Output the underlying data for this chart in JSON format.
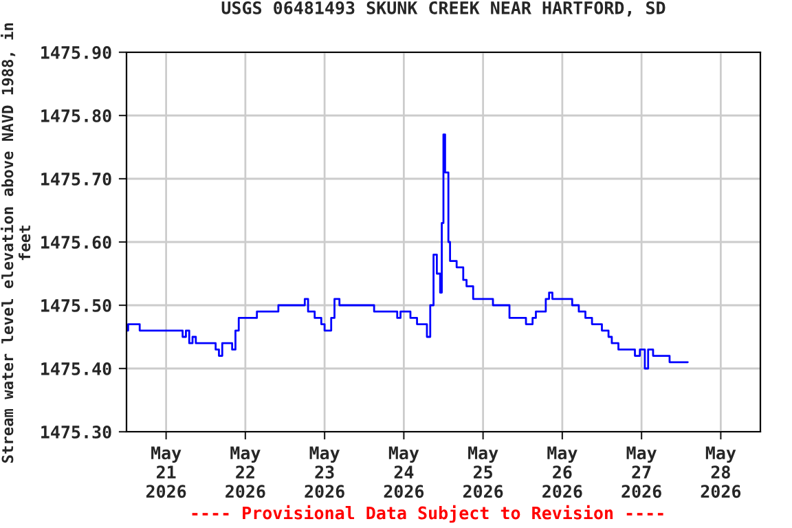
{
  "chart_data": {
    "type": "step",
    "title": "USGS 06481493 SKUNK CREEK NEAR HARTFORD, SD",
    "ylabel": "Stream water level elevation above NAVD 1988, in feet",
    "x": [
      "2026-05-20T12:00",
      "2026-05-20T12:30",
      "2026-05-20T16:00",
      "2026-05-21T05:00",
      "2026-05-21T06:00",
      "2026-05-21T07:00",
      "2026-05-21T08:00",
      "2026-05-21T09:00",
      "2026-05-21T15:00",
      "2026-05-21T16:00",
      "2026-05-21T17:00",
      "2026-05-21T20:00",
      "2026-05-21T21:00",
      "2026-05-21T22:00",
      "2026-05-22T03:30",
      "2026-05-22T10:00",
      "2026-05-22T18:00",
      "2026-05-22T19:00",
      "2026-05-22T21:00",
      "2026-05-22T23:00",
      "2026-05-23T00:00",
      "2026-05-23T02:00",
      "2026-05-23T03:00",
      "2026-05-23T04:30",
      "2026-05-23T15:00",
      "2026-05-23T22:00",
      "2026-05-23T23:00",
      "2026-05-24T02:00",
      "2026-05-24T04:00",
      "2026-05-24T07:00",
      "2026-05-24T08:00",
      "2026-05-24T09:00",
      "2026-05-24T10:00",
      "2026-05-24T11:00",
      "2026-05-24T11:30",
      "2026-05-24T12:00",
      "2026-05-24T12:30",
      "2026-05-24T13:30",
      "2026-05-24T14:00",
      "2026-05-24T16:00",
      "2026-05-24T18:00",
      "2026-05-24T19:00",
      "2026-05-24T21:00",
      "2026-05-25T03:00",
      "2026-05-25T08:00",
      "2026-05-25T13:00",
      "2026-05-25T15:00",
      "2026-05-25T16:00",
      "2026-05-25T19:00",
      "2026-05-25T20:00",
      "2026-05-25T21:00",
      "2026-05-26T03:00",
      "2026-05-26T05:00",
      "2026-05-26T07:00",
      "2026-05-26T09:00",
      "2026-05-26T12:00",
      "2026-05-26T14:00",
      "2026-05-26T15:00",
      "2026-05-26T17:00",
      "2026-05-26T22:00",
      "2026-05-26T23:30",
      "2026-05-27T01:00",
      "2026-05-27T02:00",
      "2026-05-27T03:30",
      "2026-05-27T08:30",
      "2026-05-27T14:00"
    ],
    "series": [
      {
        "color": "#0000ff",
        "values": [
          1475.46,
          1475.47,
          1475.46,
          1475.45,
          1475.46,
          1475.44,
          1475.45,
          1475.44,
          1475.43,
          1475.42,
          1475.44,
          1475.43,
          1475.46,
          1475.48,
          1475.49,
          1475.5,
          1475.51,
          1475.49,
          1475.48,
          1475.47,
          1475.46,
          1475.48,
          1475.51,
          1475.5,
          1475.49,
          1475.48,
          1475.49,
          1475.48,
          1475.47,
          1475.45,
          1475.5,
          1475.58,
          1475.55,
          1475.52,
          1475.63,
          1475.77,
          1475.71,
          1475.6,
          1475.57,
          1475.56,
          1475.54,
          1475.53,
          1475.51,
          1475.5,
          1475.48,
          1475.47,
          1475.48,
          1475.49,
          1475.51,
          1475.52,
          1475.51,
          1475.5,
          1475.49,
          1475.48,
          1475.47,
          1475.46,
          1475.45,
          1475.44,
          1475.43,
          1475.42,
          1475.43,
          1475.4,
          1475.43,
          1475.42,
          1475.41,
          1475.41
        ]
      }
    ],
    "xlim": [
      "2026-05-20T12:00",
      "2026-05-28T12:00"
    ],
    "xticks": [
      {
        "value": "2026-05-21",
        "label": "May\n21\n2026"
      },
      {
        "value": "2026-05-22",
        "label": "May\n22\n2026"
      },
      {
        "value": "2026-05-23",
        "label": "May\n23\n2026"
      },
      {
        "value": "2026-05-24",
        "label": "May\n24\n2026"
      },
      {
        "value": "2026-05-25",
        "label": "May\n25\n2026"
      },
      {
        "value": "2026-05-26",
        "label": "May\n26\n2026"
      },
      {
        "value": "2026-05-27",
        "label": "May\n27\n2026"
      },
      {
        "value": "2026-05-28",
        "label": "May\n28\n2026"
      }
    ],
    "ylim": [
      1475.3,
      1475.9
    ],
    "yticks": [
      {
        "value": 1475.3,
        "label": "1475.30"
      },
      {
        "value": 1475.4,
        "label": "1475.40"
      },
      {
        "value": 1475.5,
        "label": "1475.50"
      },
      {
        "value": 1475.6,
        "label": "1475.60"
      },
      {
        "value": 1475.7,
        "label": "1475.70"
      },
      {
        "value": 1475.8,
        "label": "1475.80"
      },
      {
        "value": 1475.9,
        "label": "1475.90"
      }
    ],
    "grid": true,
    "annotations": [
      "---- Provisional Data Subject to Revision ----"
    ]
  }
}
